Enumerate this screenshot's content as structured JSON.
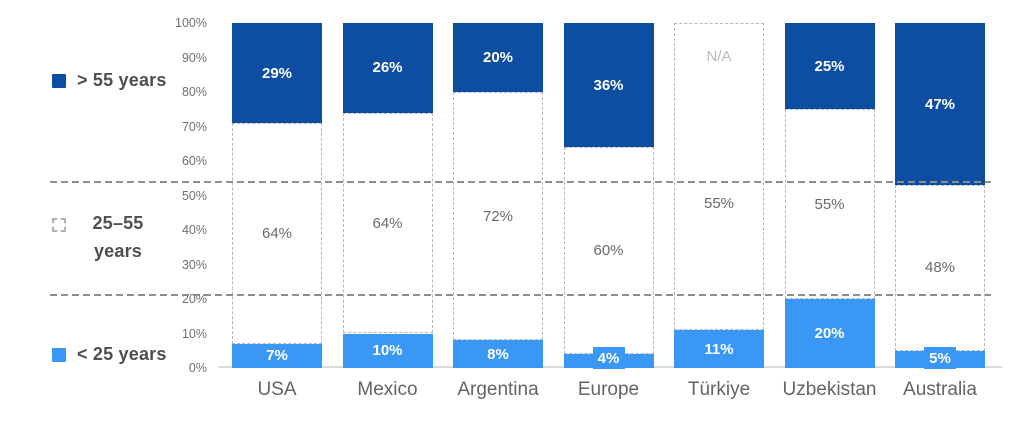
{
  "chart_data": {
    "type": "bar",
    "stacked": true,
    "title": "",
    "categories": [
      "USA",
      "Mexico",
      "Argentina",
      "Europe",
      "Türkiye",
      "Uzbekistan",
      "Australia"
    ],
    "series": [
      {
        "name": "> 55 years",
        "color": "#0D4DA2",
        "values": [
          29,
          26,
          20,
          36,
          null,
          25,
          47
        ],
        "labels": [
          "29%",
          "26%",
          "20%",
          "36%",
          "N/A",
          "25%",
          "47%"
        ]
      },
      {
        "name": "25–55 years",
        "color": "#FFFFFF",
        "values": [
          64,
          64,
          72,
          60,
          55,
          55,
          48
        ],
        "labels": [
          "64%",
          "64%",
          "72%",
          "60%",
          "55%",
          "55%",
          "48%"
        ]
      },
      {
        "name": "< 25 years",
        "color": "#3A98F4",
        "values": [
          7,
          10,
          8,
          4,
          11,
          20,
          5
        ],
        "labels": [
          "7%",
          "10%",
          "8%",
          "4%",
          "11%",
          "20%",
          "5%"
        ]
      }
    ],
    "y_axis": {
      "min": 0,
      "max": 100,
      "tick_labels": [
        "0%",
        "10%",
        "20%",
        "30%",
        "40%",
        "50%",
        "60%",
        "70%",
        "80%",
        "90%",
        "100%"
      ]
    },
    "legend": [
      {
        "label": "> 55 years",
        "swatch": "solid-dark-blue"
      },
      {
        "label": "25–55 years",
        "line1": "25–55",
        "line2": "years",
        "swatch": "dashed-outline"
      },
      {
        "label": "< 25 years",
        "swatch": "solid-light-blue"
      }
    ],
    "annotations": {
      "missing_value_label": "N/A"
    },
    "grid": "dashed-band-separators",
    "legend_position": "left",
    "colors": {
      "dark_blue": "#0D4DA2",
      "light_blue": "#3A98F4",
      "segment_label_gray": "#6a6a6a",
      "axis_text_gray": "#6f6f6f",
      "na_text_gray": "#b7bbc0",
      "dashed_border_gray": "#b6b6b6",
      "separator_gray": "#8d8d8d",
      "legend_text_gray": "#4f4f4f",
      "category_text_gray": "#646464"
    }
  }
}
